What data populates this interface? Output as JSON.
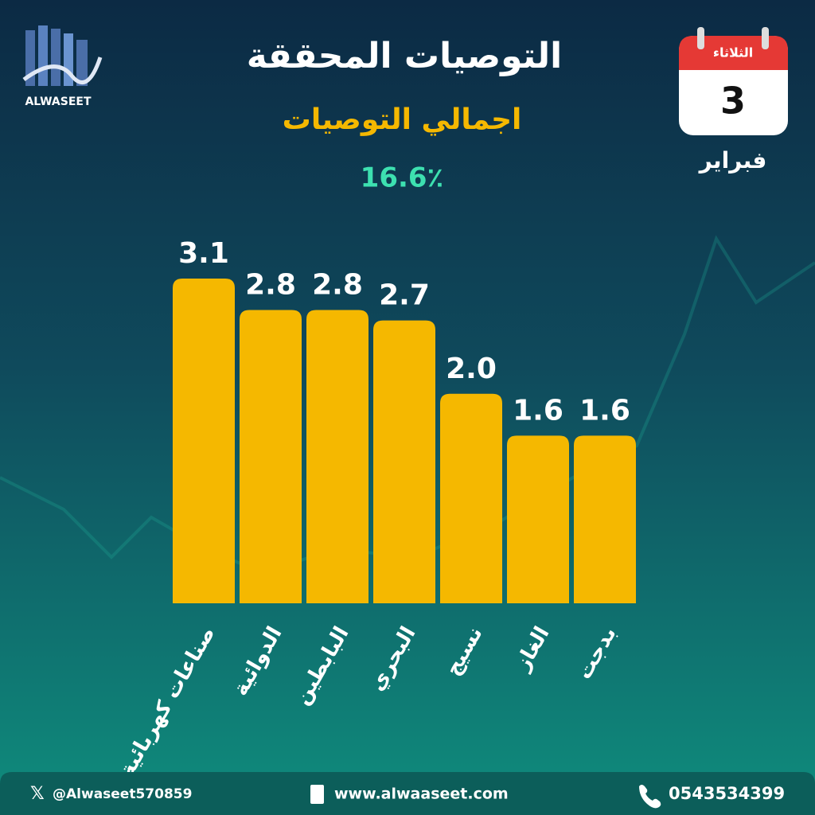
{
  "logo": "ALWASEET",
  "calendar": {
    "weekday": "الثلاثاء",
    "day": "3",
    "month": "فبراير"
  },
  "chart_data": {
    "type": "bar",
    "title": "التوصيات المحققة",
    "subtitle": "اجمالي التوصيات",
    "total": "16.6٪",
    "categories": [
      "صناعات كهربائية",
      "الدوائية",
      "البابطين",
      "البحري",
      "نسيج",
      "الغاز",
      "بدجت"
    ],
    "values": [
      3.1,
      2.8,
      2.8,
      2.7,
      2.0,
      1.6,
      1.6
    ],
    "value_labels": [
      "3.1",
      "2.8",
      "2.8",
      "2.7",
      "2.0",
      "1.6",
      "1.6"
    ],
    "color": "#f5b800"
  },
  "footer": {
    "twitter": "@Alwaseet570859",
    "website": "www.alwaaseet.com",
    "phone": "0543534399"
  }
}
